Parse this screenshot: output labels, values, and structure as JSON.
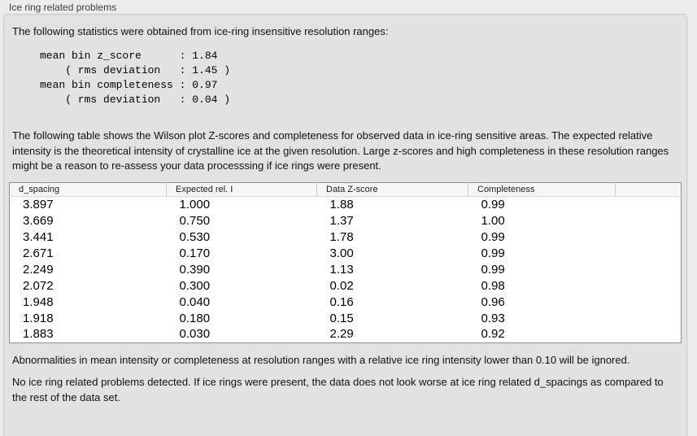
{
  "panel": {
    "title": "Ice ring related problems"
  },
  "intro": "The following statistics were obtained from ice-ring insensitive resolution ranges:",
  "stats_block": "mean bin z_score      : 1.84\n    ( rms deviation   : 1.45 )\nmean bin completeness : 0.97\n    ( rms deviation   : 0.04 )",
  "paragraph": "The following table shows the Wilson plot Z-scores and completeness for observed data in ice-ring sensitive areas. The expected relative intensity is the theoretical intensity of crystalline ice at the given resolution. Large z-scores and high completeness in these resolution ranges might be a reason to re-assess your data processsing if ice rings were present.",
  "table": {
    "columns": [
      "d_spacing",
      "Expected rel. I",
      "Data Z-score",
      "Completeness",
      ""
    ],
    "rows": [
      [
        "3.897",
        "1.000",
        "1.88",
        "0.99"
      ],
      [
        "3.669",
        "0.750",
        "1.37",
        "1.00"
      ],
      [
        "3.441",
        "0.530",
        "1.78",
        "0.99"
      ],
      [
        "2.671",
        "0.170",
        "3.00",
        "0.99"
      ],
      [
        "2.249",
        "0.390",
        "1.13",
        "0.99"
      ],
      [
        "2.072",
        "0.300",
        "0.02",
        "0.98"
      ],
      [
        "1.948",
        "0.040",
        "0.16",
        "0.96"
      ],
      [
        "1.918",
        "0.180",
        "0.15",
        "0.93"
      ],
      [
        "1.883",
        "0.030",
        "2.29",
        "0.92"
      ]
    ]
  },
  "note": "Abnormalities in mean intensity or completeness at resolution ranges with a relative ice ring intensity lower than 0.10 will be ignored.",
  "conclusion": "No ice ring related problems detected. If ice rings were present, the data does not look worse at ice ring related d_spacings as compared to the rest of the data set.",
  "colors": {
    "outer_background": "#ececec",
    "groupbox_background": "#e2e2e2",
    "table_border": "#8f8f8f",
    "table_header_background": "#f6f6f6"
  }
}
